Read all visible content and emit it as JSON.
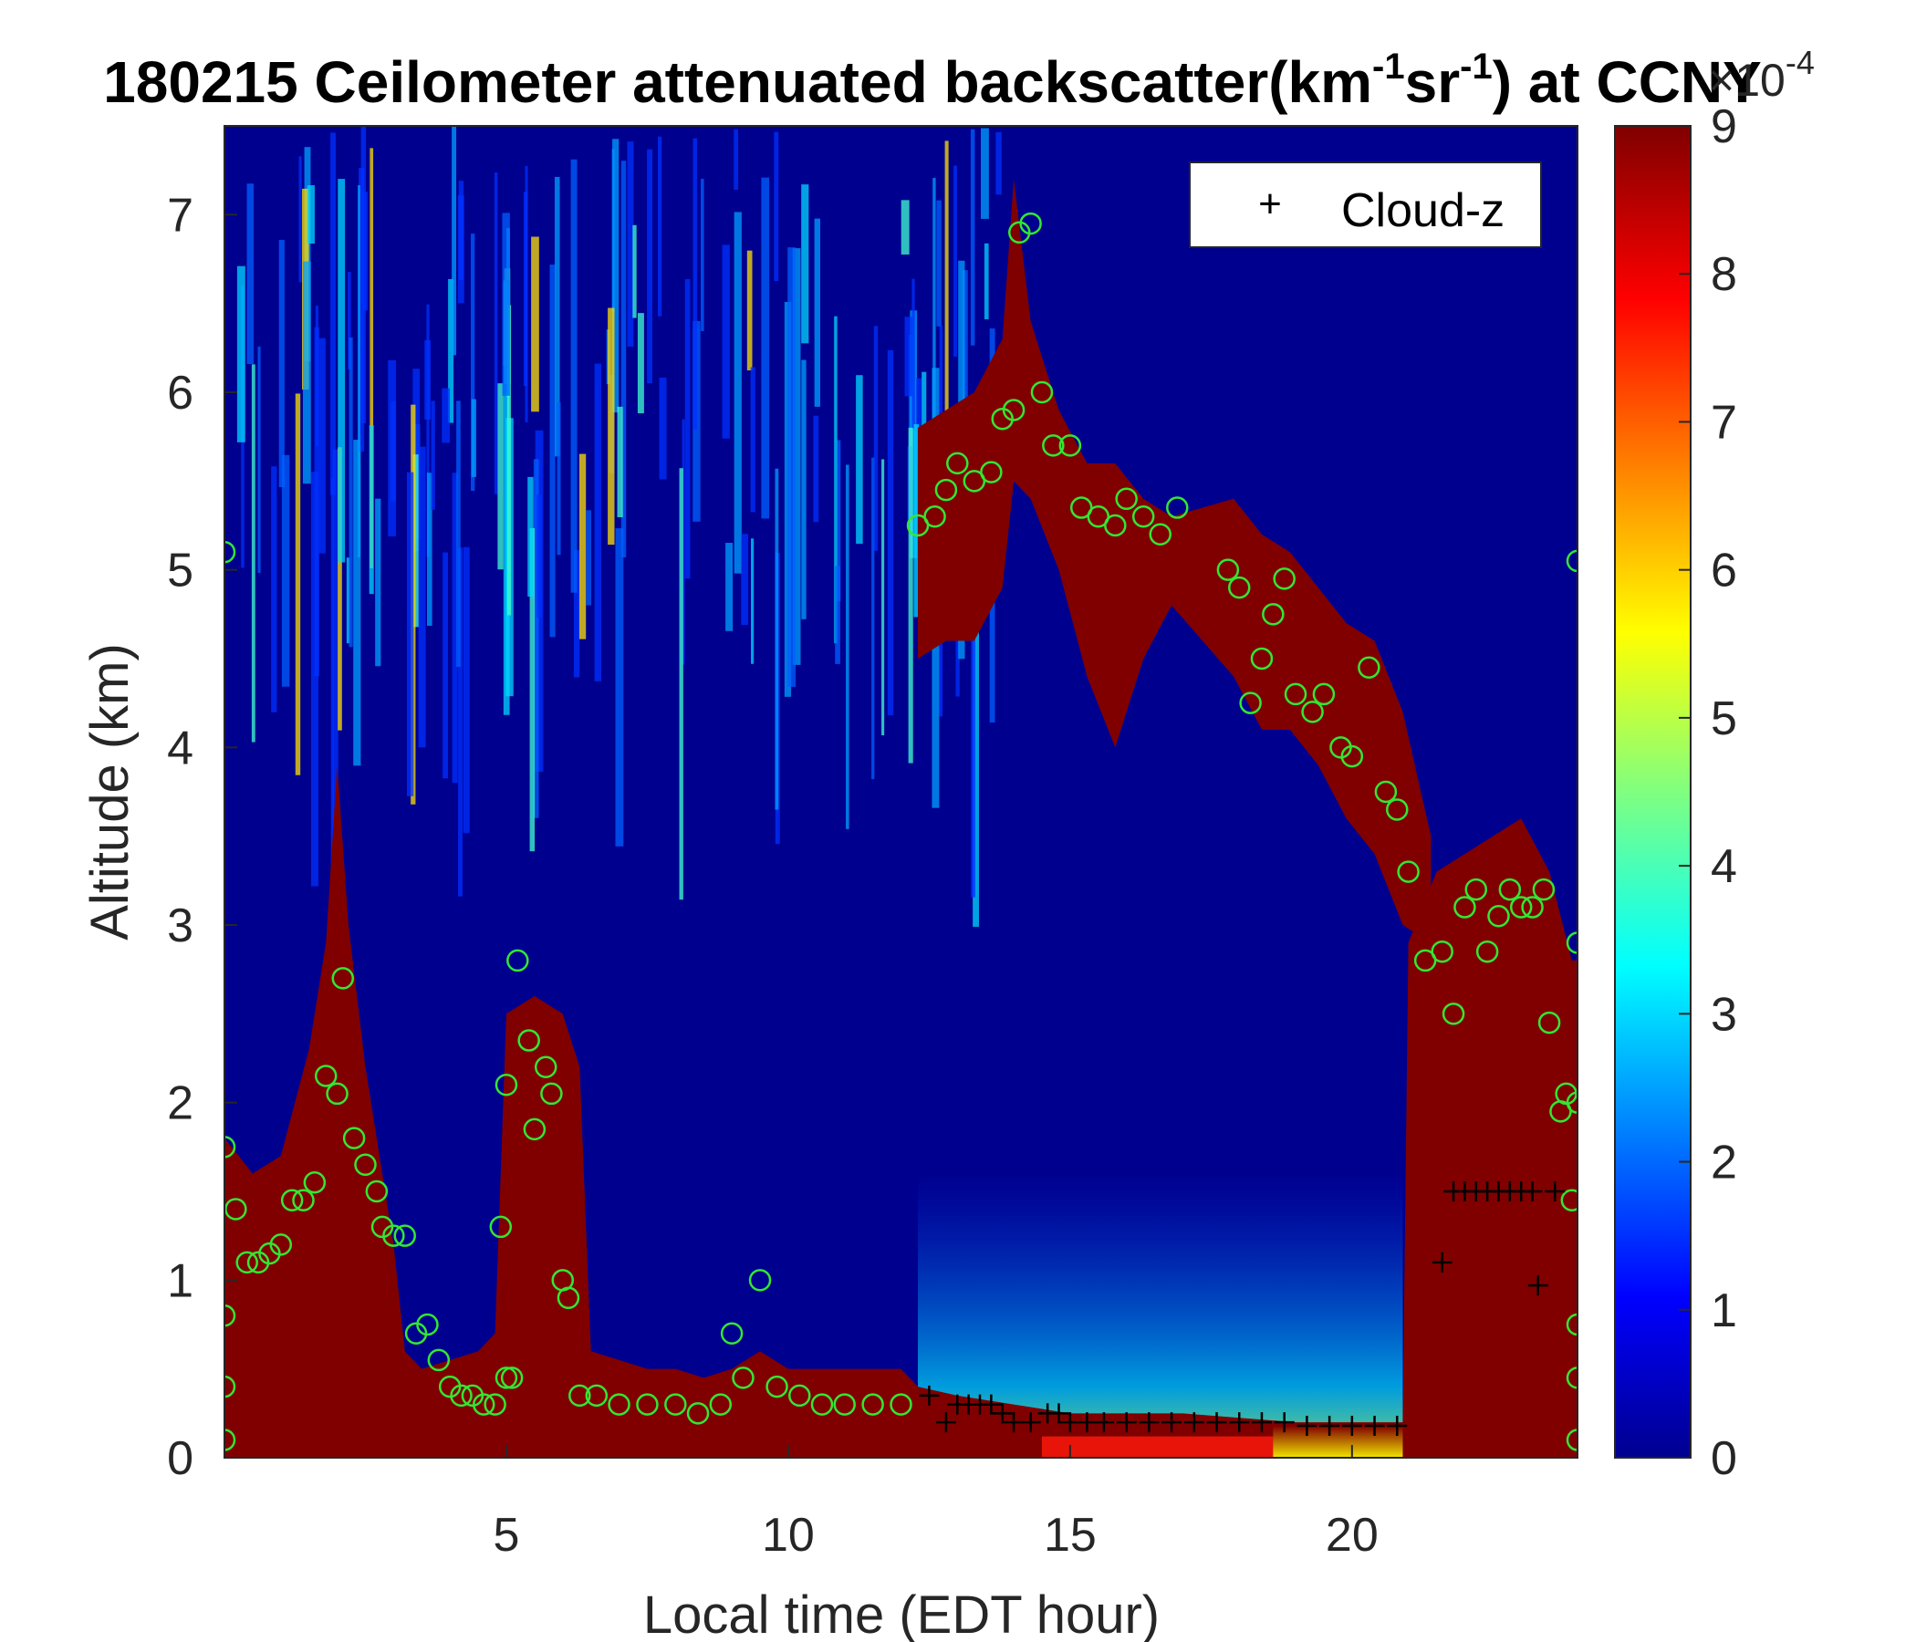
{
  "chart_data": {
    "type": "heatmap",
    "title": {
      "date": "180215",
      "text": "Ceilometer attenuated backscatter(km",
      "sup1": "-1",
      "mid": "sr",
      "sup2": "-1",
      "tail": ") at CCNY"
    },
    "xlabel": "Local time (EDT hour)",
    "ylabel": "Altitude (km)",
    "xlim": [
      0,
      24
    ],
    "ylim": [
      0,
      7.5
    ],
    "xticks": [
      "5",
      "10",
      "15",
      "20"
    ],
    "yticks": [
      "0",
      "1",
      "2",
      "3",
      "4",
      "5",
      "6",
      "7"
    ],
    "colorbar": {
      "range": [
        0,
        9
      ],
      "ticks": [
        "0",
        "1",
        "2",
        "3",
        "4",
        "5",
        "6",
        "7",
        "8",
        "9"
      ],
      "multiplier_base": "×10",
      "multiplier_exp": "-4",
      "colormap": "jet"
    },
    "legend": {
      "placement": "top-right",
      "entries": [
        {
          "symbol": "+",
          "label": "Cloud-z"
        }
      ]
    },
    "marker_colors": {
      "green_circle": "#33e633",
      "cloud_plus": "#000000"
    },
    "lower_layer_top_km": [
      [
        0.0,
        1.8
      ],
      [
        0.5,
        1.6
      ],
      [
        1.0,
        1.7
      ],
      [
        1.5,
        2.3
      ],
      [
        1.8,
        2.9
      ],
      [
        2.0,
        3.9
      ],
      [
        2.2,
        3.0
      ],
      [
        2.5,
        2.2
      ],
      [
        2.8,
        1.6
      ],
      [
        3.0,
        1.2
      ],
      [
        3.2,
        0.6
      ],
      [
        3.5,
        0.5
      ],
      [
        4.0,
        0.55
      ],
      [
        4.5,
        0.6
      ],
      [
        4.8,
        0.7
      ],
      [
        5.0,
        2.5
      ],
      [
        5.5,
        2.6
      ],
      [
        6.0,
        2.5
      ],
      [
        6.3,
        2.2
      ],
      [
        6.5,
        0.6
      ],
      [
        7.0,
        0.55
      ],
      [
        7.5,
        0.5
      ],
      [
        8.0,
        0.5
      ],
      [
        8.5,
        0.45
      ],
      [
        9.0,
        0.5
      ],
      [
        9.5,
        0.6
      ],
      [
        10.0,
        0.5
      ],
      [
        11.0,
        0.5
      ],
      [
        12.0,
        0.5
      ],
      [
        12.3,
        0.4
      ],
      [
        13.0,
        0.35
      ],
      [
        14.0,
        0.3
      ],
      [
        15.0,
        0.25
      ],
      [
        17.0,
        0.25
      ],
      [
        19.0,
        0.2
      ],
      [
        20.9,
        0.2
      ],
      [
        21.0,
        2.9
      ],
      [
        21.5,
        3.3
      ],
      [
        22.0,
        3.4
      ],
      [
        22.5,
        3.5
      ],
      [
        23.0,
        3.6
      ],
      [
        23.5,
        3.3
      ],
      [
        23.9,
        2.8
      ]
    ],
    "upper_cloud_bands_km": [
      [
        12.3,
        5.8,
        4.5
      ],
      [
        12.8,
        5.9,
        4.6
      ],
      [
        13.3,
        6.0,
        4.6
      ],
      [
        13.8,
        6.3,
        4.9
      ],
      [
        14.0,
        7.2,
        5.5
      ],
      [
        14.3,
        6.4,
        5.4
      ],
      [
        14.8,
        5.9,
        5.0
      ],
      [
        15.3,
        5.6,
        4.4
      ],
      [
        15.8,
        5.6,
        4.0
      ],
      [
        16.3,
        5.4,
        4.5
      ],
      [
        16.8,
        5.3,
        4.8
      ],
      [
        17.9,
        5.4,
        4.4
      ],
      [
        18.4,
        5.2,
        4.1
      ],
      [
        18.9,
        5.1,
        4.1
      ],
      [
        19.4,
        4.9,
        3.9
      ],
      [
        19.9,
        4.7,
        3.6
      ],
      [
        20.4,
        4.6,
        3.4
      ],
      [
        20.9,
        4.2,
        3.0
      ],
      [
        21.4,
        3.5,
        2.9
      ]
    ],
    "green_circles": [
      [
        0.0,
        1.75
      ],
      [
        0.2,
        1.4
      ],
      [
        0.4,
        1.1
      ],
      [
        0.6,
        1.1
      ],
      [
        0.8,
        1.15
      ],
      [
        1.0,
        1.2
      ],
      [
        1.2,
        1.45
      ],
      [
        1.4,
        1.45
      ],
      [
        1.6,
        1.55
      ],
      [
        1.8,
        2.15
      ],
      [
        2.0,
        2.05
      ],
      [
        2.1,
        2.7
      ],
      [
        2.3,
        1.8
      ],
      [
        2.5,
        1.65
      ],
      [
        2.7,
        1.5
      ],
      [
        2.8,
        1.3
      ],
      [
        3.0,
        1.25
      ],
      [
        3.2,
        1.25
      ],
      [
        3.4,
        0.7
      ],
      [
        3.6,
        0.75
      ],
      [
        3.8,
        0.55
      ],
      [
        4.0,
        0.4
      ],
      [
        4.2,
        0.35
      ],
      [
        4.4,
        0.35
      ],
      [
        4.6,
        0.3
      ],
      [
        4.8,
        0.3
      ],
      [
        5.0,
        0.45
      ],
      [
        5.1,
        0.45
      ],
      [
        4.9,
        1.3
      ],
      [
        5.0,
        2.1
      ],
      [
        5.2,
        2.8
      ],
      [
        5.4,
        2.35
      ],
      [
        5.5,
        1.85
      ],
      [
        5.7,
        2.2
      ],
      [
        5.8,
        2.05
      ],
      [
        6.0,
        1.0
      ],
      [
        6.1,
        0.9
      ],
      [
        6.3,
        0.35
      ],
      [
        6.6,
        0.35
      ],
      [
        7.0,
        0.3
      ],
      [
        7.5,
        0.3
      ],
      [
        8.0,
        0.3
      ],
      [
        8.4,
        0.25
      ],
      [
        8.8,
        0.3
      ],
      [
        9.0,
        0.7
      ],
      [
        9.2,
        0.45
      ],
      [
        9.5,
        1.0
      ],
      [
        9.8,
        0.4
      ],
      [
        10.2,
        0.35
      ],
      [
        10.6,
        0.3
      ],
      [
        11.0,
        0.3
      ],
      [
        11.5,
        0.3
      ],
      [
        12.0,
        0.3
      ],
      [
        12.3,
        5.25
      ],
      [
        12.6,
        5.3
      ],
      [
        12.8,
        5.45
      ],
      [
        13.0,
        5.6
      ],
      [
        13.3,
        5.5
      ],
      [
        13.6,
        5.55
      ],
      [
        13.8,
        5.85
      ],
      [
        14.0,
        5.9
      ],
      [
        14.1,
        6.9
      ],
      [
        14.3,
        6.95
      ],
      [
        14.5,
        6.0
      ],
      [
        14.7,
        5.7
      ],
      [
        15.0,
        5.7
      ],
      [
        15.2,
        5.35
      ],
      [
        15.5,
        5.3
      ],
      [
        15.8,
        5.25
      ],
      [
        16.0,
        5.4
      ],
      [
        16.3,
        5.3
      ],
      [
        16.6,
        5.2
      ],
      [
        16.9,
        5.35
      ],
      [
        17.8,
        5.0
      ],
      [
        18.0,
        4.9
      ],
      [
        18.2,
        4.25
      ],
      [
        18.4,
        4.5
      ],
      [
        18.6,
        4.75
      ],
      [
        18.8,
        4.95
      ],
      [
        19.0,
        4.3
      ],
      [
        19.3,
        4.2
      ],
      [
        19.5,
        4.3
      ],
      [
        19.8,
        4.0
      ],
      [
        20.0,
        3.95
      ],
      [
        20.3,
        4.45
      ],
      [
        20.6,
        3.75
      ],
      [
        20.8,
        3.65
      ],
      [
        21.0,
        3.3
      ],
      [
        21.3,
        2.8
      ],
      [
        21.6,
        2.85
      ],
      [
        21.8,
        2.5
      ],
      [
        22.0,
        3.1
      ],
      [
        22.2,
        3.2
      ],
      [
        22.4,
        2.85
      ],
      [
        22.6,
        3.05
      ],
      [
        22.8,
        3.2
      ],
      [
        23.0,
        3.1
      ],
      [
        23.2,
        3.1
      ],
      [
        23.4,
        3.2
      ],
      [
        23.5,
        2.45
      ],
      [
        23.7,
        1.95
      ],
      [
        23.8,
        2.05
      ],
      [
        23.9,
        1.45
      ],
      [
        0.0,
        5.1
      ],
      [
        0.0,
        0.8
      ],
      [
        0.0,
        0.4
      ],
      [
        0.0,
        0.1
      ],
      [
        24.0,
        5.05
      ],
      [
        24.0,
        2.9
      ],
      [
        24.0,
        2.0
      ],
      [
        24.0,
        0.75
      ],
      [
        24.0,
        0.45
      ],
      [
        24.0,
        0.1
      ]
    ],
    "cloud_z_plus": [
      [
        12.5,
        0.35
      ],
      [
        12.8,
        0.2
      ],
      [
        13.0,
        0.3
      ],
      [
        13.2,
        0.3
      ],
      [
        13.4,
        0.3
      ],
      [
        13.6,
        0.3
      ],
      [
        13.8,
        0.25
      ],
      [
        14.0,
        0.2
      ],
      [
        14.3,
        0.2
      ],
      [
        14.6,
        0.25
      ],
      [
        14.8,
        0.25
      ],
      [
        15.0,
        0.2
      ],
      [
        15.3,
        0.2
      ],
      [
        15.6,
        0.2
      ],
      [
        16.0,
        0.2
      ],
      [
        16.4,
        0.2
      ],
      [
        16.8,
        0.2
      ],
      [
        17.2,
        0.2
      ],
      [
        17.6,
        0.2
      ],
      [
        18.0,
        0.2
      ],
      [
        18.4,
        0.2
      ],
      [
        18.8,
        0.2
      ],
      [
        19.2,
        0.18
      ],
      [
        19.6,
        0.18
      ],
      [
        20.0,
        0.18
      ],
      [
        20.4,
        0.18
      ],
      [
        20.8,
        0.18
      ],
      [
        21.6,
        1.1
      ],
      [
        21.8,
        1.5
      ],
      [
        22.0,
        1.5
      ],
      [
        22.2,
        1.5
      ],
      [
        22.4,
        1.5
      ],
      [
        22.6,
        1.5
      ],
      [
        22.8,
        1.5
      ],
      [
        23.0,
        1.5
      ],
      [
        23.2,
        1.5
      ],
      [
        23.3,
        0.97
      ],
      [
        23.6,
        1.5
      ]
    ]
  }
}
